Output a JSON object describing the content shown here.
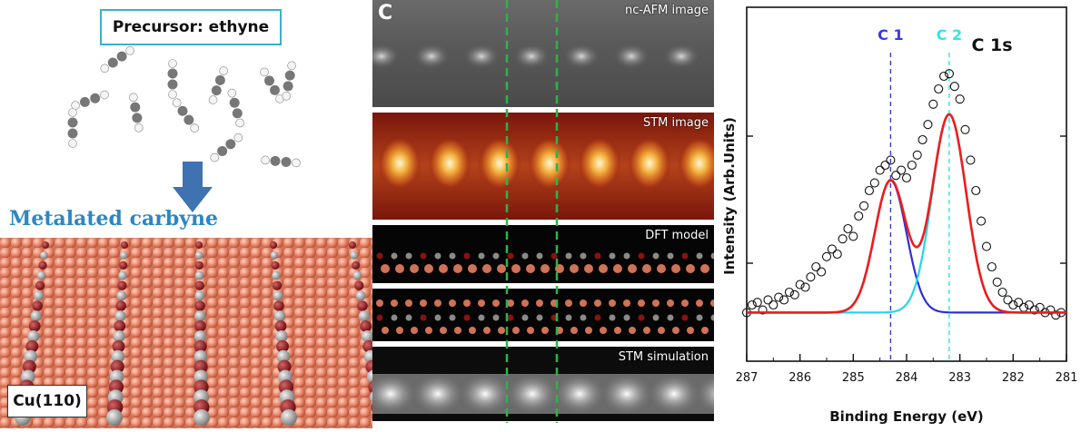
{
  "left": {
    "precursor_label": "Precursor: ethyne",
    "title": "Metalated carbyne",
    "substrate_label": "Cu(110)"
  },
  "middle": {
    "panel_letter": "C",
    "strips": [
      {
        "label": "nc-AFM image"
      },
      {
        "label": "STM image"
      },
      {
        "label": "DFT model"
      },
      {
        "label": ""
      },
      {
        "label": "STM simulation"
      }
    ]
  },
  "chart_data": {
    "type": "line",
    "title": "C 1s",
    "xlabel": "Binding Energy (eV)",
    "ylabel": "Intensity (Arb.Units)",
    "xlim": [
      287,
      281
    ],
    "x_reversed": true,
    "x_ticks": [
      "287",
      "286",
      "285",
      "284",
      "283",
      "282",
      "281"
    ],
    "markers": [
      {
        "label": "C 1",
        "x": 284.3,
        "color": "#3a3ae0"
      },
      {
        "label": "C 2",
        "x": 283.2,
        "color": "#2ee6e6"
      }
    ],
    "series": [
      {
        "name": "",
        "color": "#2f2fd9",
        "peak_center": 284.3,
        "peak_height": 0.52,
        "peak_width": 0.42
      },
      {
        "name": "",
        "color": "#22d7e8",
        "peak_center": 283.2,
        "peak_height": 0.78,
        "peak_width": 0.45
      },
      {
        "name": "",
        "color": "#ee1c1c",
        "note_free": true
      }
    ],
    "data_points": [
      [
        287.0,
        0.02
      ],
      [
        286.9,
        0.05
      ],
      [
        286.8,
        0.06
      ],
      [
        286.7,
        0.03
      ],
      [
        286.6,
        0.07
      ],
      [
        286.5,
        0.05
      ],
      [
        286.4,
        0.08
      ],
      [
        286.3,
        0.07
      ],
      [
        286.2,
        0.1
      ],
      [
        286.1,
        0.09
      ],
      [
        286.0,
        0.13
      ],
      [
        285.9,
        0.12
      ],
      [
        285.8,
        0.16
      ],
      [
        285.7,
        0.2
      ],
      [
        285.6,
        0.18
      ],
      [
        285.5,
        0.24
      ],
      [
        285.4,
        0.27
      ],
      [
        285.3,
        0.25
      ],
      [
        285.2,
        0.31
      ],
      [
        285.1,
        0.35
      ],
      [
        285.0,
        0.32
      ],
      [
        284.9,
        0.4
      ],
      [
        284.8,
        0.44
      ],
      [
        284.7,
        0.5
      ],
      [
        284.6,
        0.53
      ],
      [
        284.5,
        0.58
      ],
      [
        284.4,
        0.6
      ],
      [
        284.3,
        0.62
      ],
      [
        284.2,
        0.56
      ],
      [
        284.1,
        0.58
      ],
      [
        284.0,
        0.55
      ],
      [
        283.9,
        0.6
      ],
      [
        283.8,
        0.64
      ],
      [
        283.7,
        0.7
      ],
      [
        283.6,
        0.76
      ],
      [
        283.5,
        0.84
      ],
      [
        283.4,
        0.9
      ],
      [
        283.3,
        0.95
      ],
      [
        283.2,
        0.96
      ],
      [
        283.1,
        0.91
      ],
      [
        283.0,
        0.86
      ],
      [
        282.9,
        0.74
      ],
      [
        282.8,
        0.62
      ],
      [
        282.7,
        0.5
      ],
      [
        282.6,
        0.38
      ],
      [
        282.5,
        0.28
      ],
      [
        282.4,
        0.2
      ],
      [
        282.3,
        0.14
      ],
      [
        282.2,
        0.1
      ],
      [
        282.1,
        0.07
      ],
      [
        282.0,
        0.05
      ],
      [
        281.9,
        0.06
      ],
      [
        281.8,
        0.04
      ],
      [
        281.7,
        0.05
      ],
      [
        281.6,
        0.03
      ],
      [
        281.5,
        0.04
      ],
      [
        281.4,
        0.02
      ],
      [
        281.3,
        0.03
      ],
      [
        281.2,
        0.01
      ],
      [
        281.1,
        0.02
      ]
    ]
  }
}
